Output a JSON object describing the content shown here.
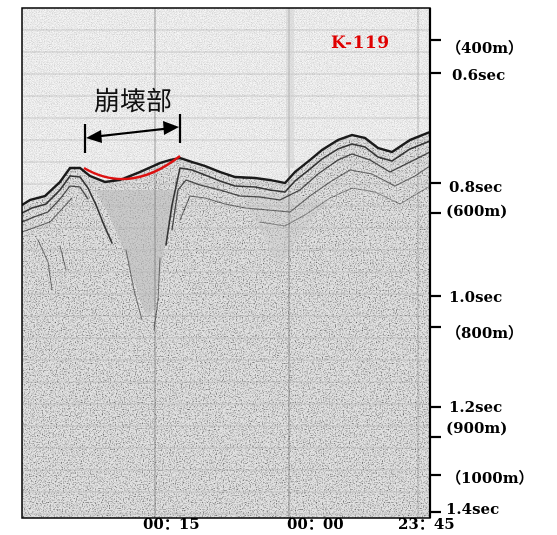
{
  "profile": {
    "line_name": "K-119",
    "annotation": "崩壊部",
    "axis_ticks": [
      {
        "text": "（400m）"
      },
      {
        "text": "0.6sec"
      },
      {
        "text": "0.8sec"
      },
      {
        "text": "(600m)"
      },
      {
        "text": "1.0sec"
      },
      {
        "text": "（800m）"
      },
      {
        "text": "1.2sec"
      },
      {
        "text": "(900m)"
      },
      {
        "text": "（1000m）"
      },
      {
        "text": "1.4sec"
      }
    ],
    "time_labels": [
      "00：15",
      "00：00",
      "23：45"
    ],
    "colors": {
      "line_name": "#e00000",
      "collapse_curve": "#dd1111",
      "background": "#f4f4f4",
      "reflector": "#1a1a1a"
    }
  }
}
